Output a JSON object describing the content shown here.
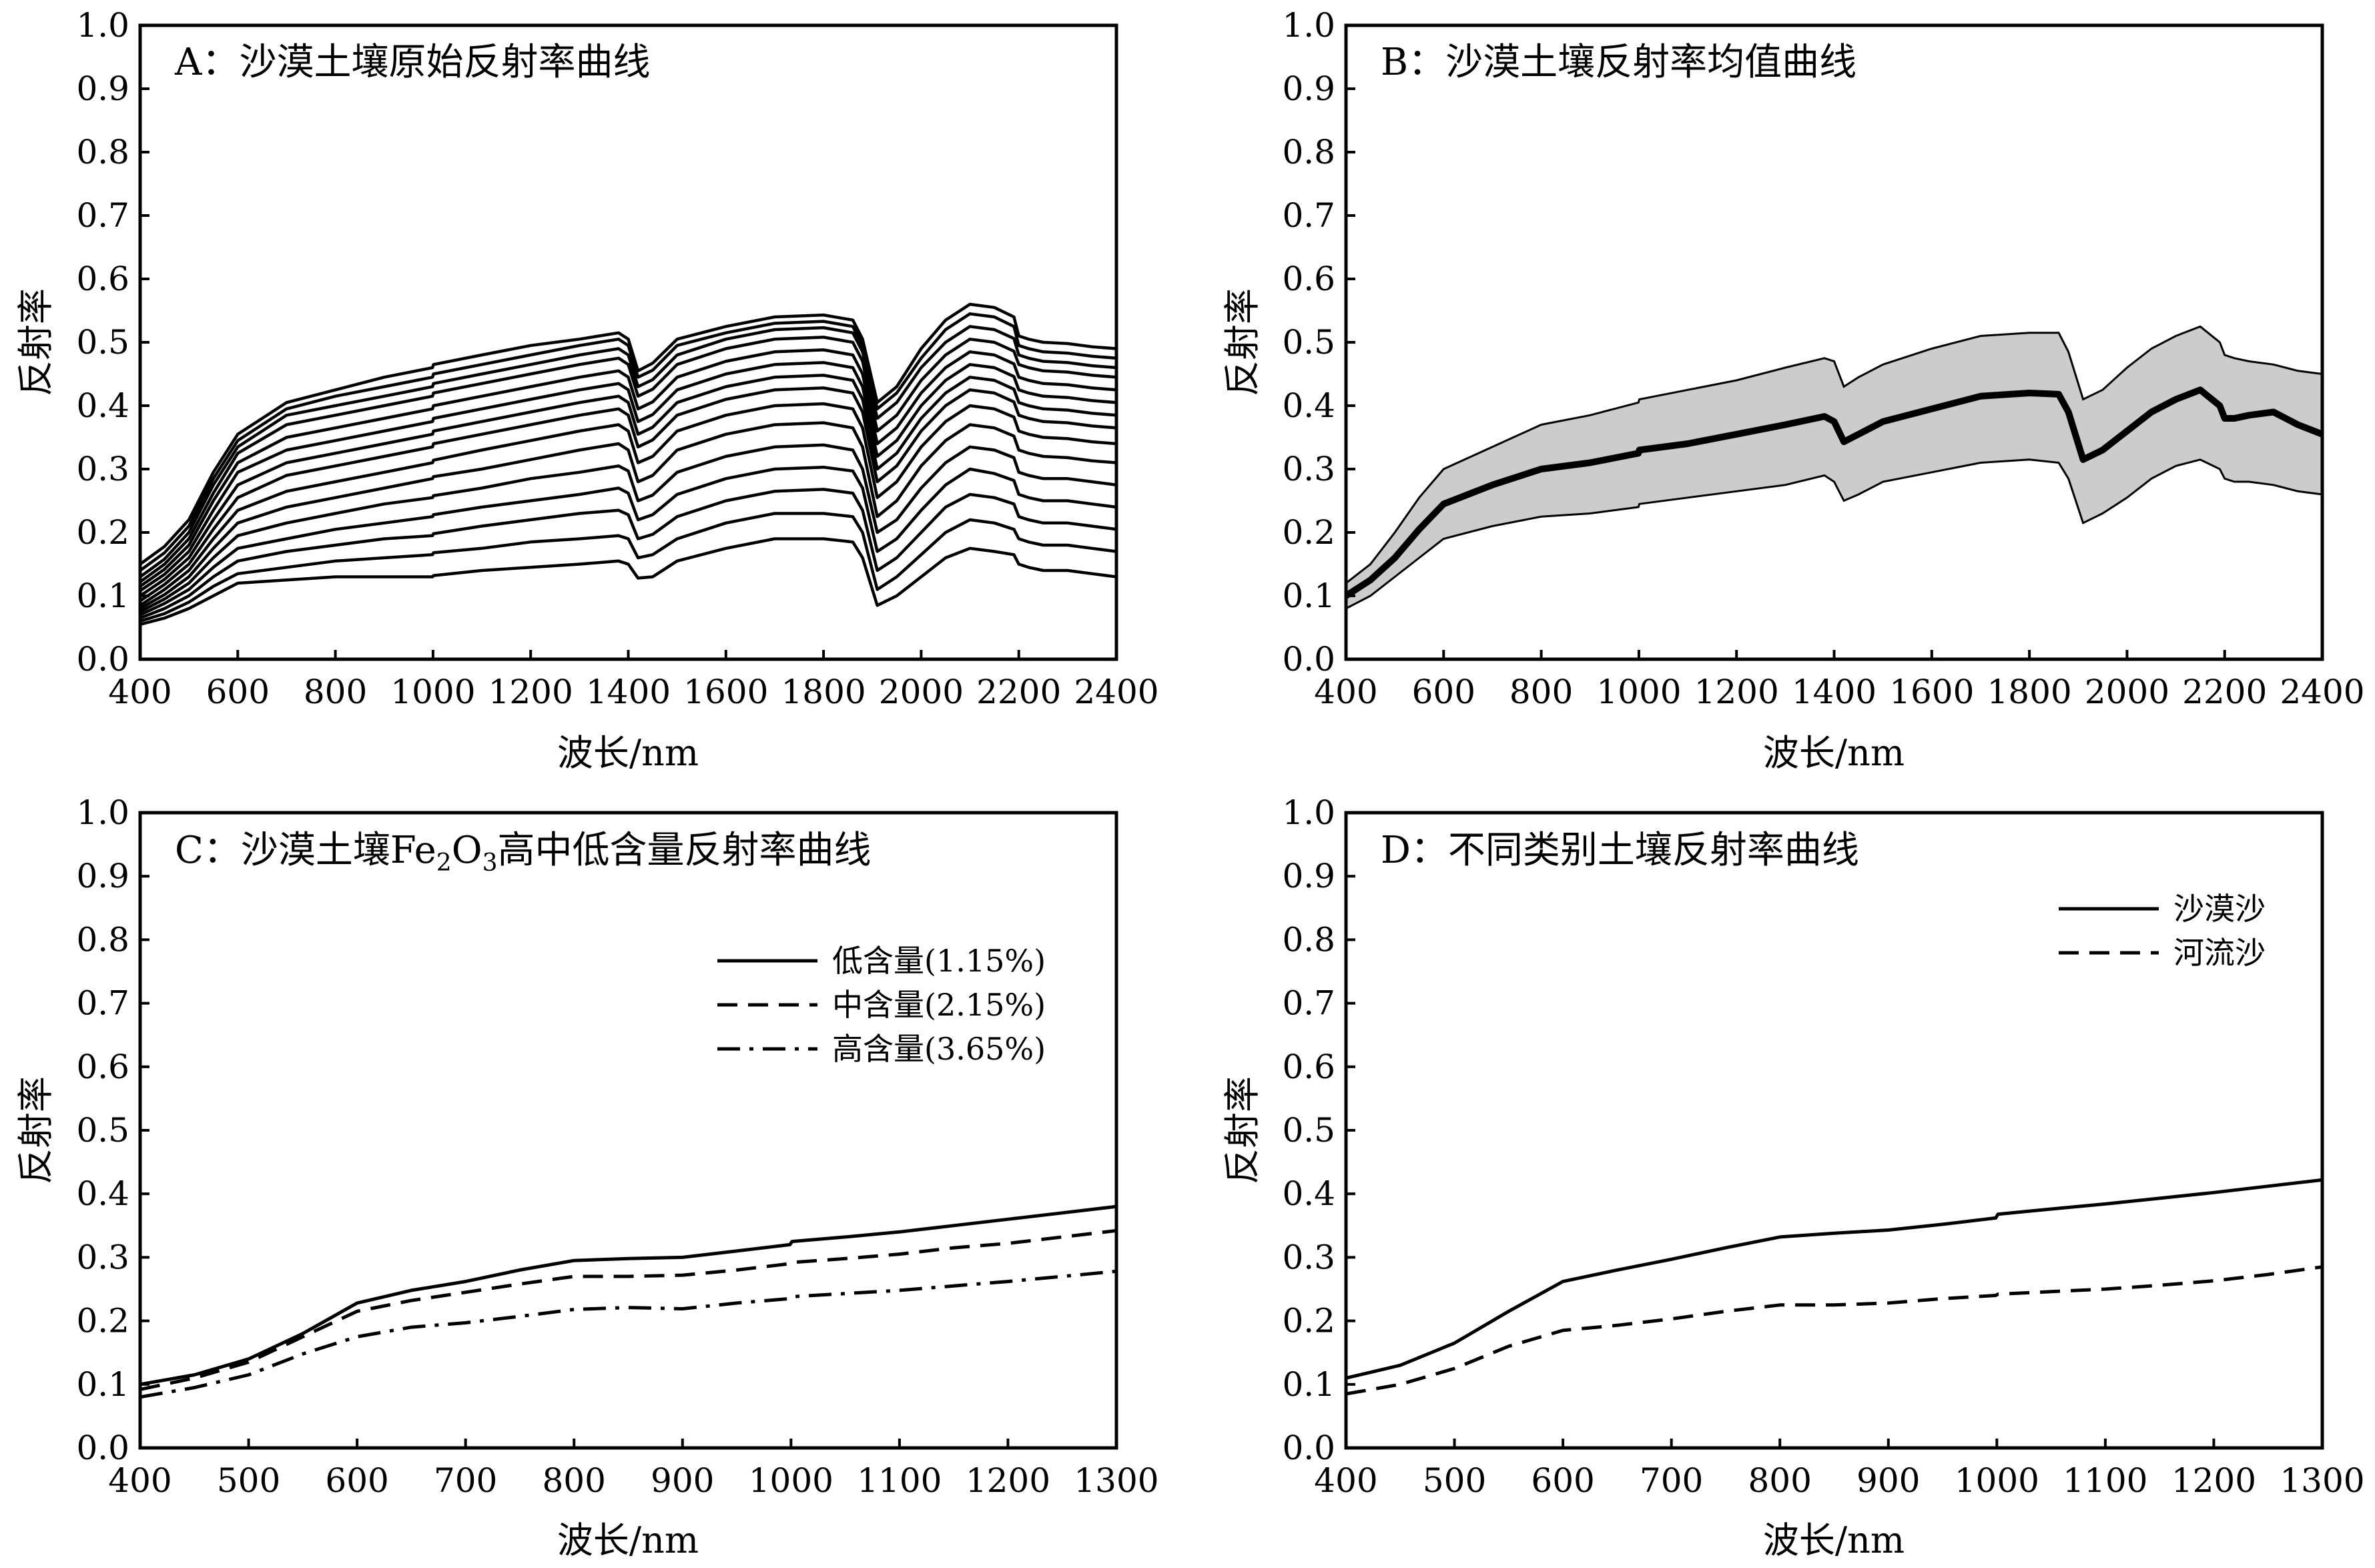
{
  "chart_data": [
    {
      "id": "A",
      "type": "line",
      "title": "A：沙漠土壤原始反射率曲线",
      "xlabel": "波长/nm",
      "ylabel": "反射率",
      "xlim": [
        400,
        2400
      ],
      "ylim": [
        0,
        1
      ],
      "xticks": [
        400,
        600,
        800,
        1000,
        1200,
        1400,
        1600,
        1800,
        2000,
        2200,
        2400
      ],
      "yticks": [
        0.0,
        0.1,
        0.2,
        0.3,
        0.4,
        0.5,
        0.6,
        0.7,
        0.8,
        0.9,
        1.0
      ],
      "grid": false,
      "legend": "none",
      "x": [
        400,
        450,
        500,
        550,
        600,
        700,
        800,
        900,
        999,
        1001,
        1100,
        1200,
        1300,
        1380,
        1400,
        1420,
        1450,
        1500,
        1600,
        1700,
        1800,
        1860,
        1880,
        1910,
        1950,
        2000,
        2050,
        2100,
        2150,
        2190,
        2200,
        2220,
        2250,
        2300,
        2350,
        2400
      ],
      "series": [
        {
          "values": [
            0.055,
            0.065,
            0.08,
            0.1,
            0.12,
            0.125,
            0.13,
            0.13,
            0.13,
            0.132,
            0.14,
            0.145,
            0.15,
            0.155,
            0.15,
            0.128,
            0.13,
            0.155,
            0.175,
            0.19,
            0.19,
            0.185,
            0.16,
            0.085,
            0.1,
            0.13,
            0.16,
            0.175,
            0.17,
            0.165,
            0.15,
            0.145,
            0.14,
            0.14,
            0.135,
            0.13
          ]
        },
        {
          "values": [
            0.06,
            0.072,
            0.09,
            0.115,
            0.135,
            0.145,
            0.155,
            0.16,
            0.165,
            0.168,
            0.175,
            0.185,
            0.19,
            0.195,
            0.19,
            0.16,
            0.165,
            0.19,
            0.215,
            0.23,
            0.23,
            0.225,
            0.2,
            0.11,
            0.13,
            0.165,
            0.2,
            0.22,
            0.215,
            0.205,
            0.19,
            0.185,
            0.18,
            0.18,
            0.175,
            0.17
          ]
        },
        {
          "values": [
            0.065,
            0.08,
            0.1,
            0.13,
            0.155,
            0.17,
            0.18,
            0.19,
            0.195,
            0.198,
            0.21,
            0.22,
            0.23,
            0.235,
            0.228,
            0.19,
            0.197,
            0.225,
            0.25,
            0.265,
            0.268,
            0.262,
            0.235,
            0.14,
            0.16,
            0.2,
            0.24,
            0.26,
            0.255,
            0.245,
            0.225,
            0.22,
            0.215,
            0.215,
            0.21,
            0.205
          ]
        },
        {
          "values": [
            0.07,
            0.088,
            0.11,
            0.145,
            0.175,
            0.19,
            0.205,
            0.215,
            0.225,
            0.228,
            0.24,
            0.25,
            0.26,
            0.27,
            0.262,
            0.22,
            0.228,
            0.26,
            0.285,
            0.3,
            0.303,
            0.297,
            0.27,
            0.17,
            0.19,
            0.235,
            0.275,
            0.3,
            0.293,
            0.282,
            0.26,
            0.255,
            0.25,
            0.25,
            0.245,
            0.24
          ]
        },
        {
          "values": [
            0.075,
            0.095,
            0.12,
            0.16,
            0.195,
            0.215,
            0.23,
            0.245,
            0.255,
            0.258,
            0.27,
            0.285,
            0.295,
            0.305,
            0.297,
            0.25,
            0.259,
            0.295,
            0.32,
            0.335,
            0.338,
            0.33,
            0.3,
            0.2,
            0.22,
            0.27,
            0.31,
            0.335,
            0.33,
            0.318,
            0.295,
            0.29,
            0.285,
            0.285,
            0.28,
            0.275
          ]
        },
        {
          "values": [
            0.08,
            0.102,
            0.13,
            0.175,
            0.215,
            0.24,
            0.255,
            0.27,
            0.285,
            0.288,
            0.3,
            0.315,
            0.33,
            0.34,
            0.33,
            0.28,
            0.29,
            0.33,
            0.355,
            0.37,
            0.373,
            0.365,
            0.335,
            0.225,
            0.25,
            0.305,
            0.345,
            0.37,
            0.365,
            0.352,
            0.33,
            0.325,
            0.32,
            0.318,
            0.313,
            0.31
          ]
        },
        {
          "values": [
            0.085,
            0.11,
            0.14,
            0.19,
            0.235,
            0.265,
            0.28,
            0.295,
            0.31,
            0.314,
            0.33,
            0.345,
            0.36,
            0.37,
            0.36,
            0.31,
            0.32,
            0.36,
            0.385,
            0.4,
            0.403,
            0.395,
            0.365,
            0.255,
            0.28,
            0.335,
            0.375,
            0.4,
            0.395,
            0.382,
            0.36,
            0.355,
            0.35,
            0.348,
            0.343,
            0.34
          ]
        },
        {
          "values": [
            0.092,
            0.118,
            0.15,
            0.205,
            0.255,
            0.29,
            0.305,
            0.32,
            0.335,
            0.34,
            0.355,
            0.37,
            0.385,
            0.395,
            0.385,
            0.335,
            0.346,
            0.385,
            0.41,
            0.425,
            0.428,
            0.42,
            0.39,
            0.28,
            0.305,
            0.36,
            0.4,
            0.425,
            0.42,
            0.406,
            0.385,
            0.38,
            0.375,
            0.373,
            0.368,
            0.365
          ]
        },
        {
          "values": [
            0.1,
            0.126,
            0.16,
            0.22,
            0.275,
            0.31,
            0.325,
            0.34,
            0.355,
            0.36,
            0.375,
            0.39,
            0.405,
            0.415,
            0.405,
            0.355,
            0.366,
            0.405,
            0.43,
            0.445,
            0.448,
            0.44,
            0.41,
            0.3,
            0.325,
            0.38,
            0.42,
            0.445,
            0.44,
            0.426,
            0.405,
            0.4,
            0.395,
            0.393,
            0.388,
            0.385
          ]
        },
        {
          "values": [
            0.108,
            0.134,
            0.17,
            0.235,
            0.295,
            0.33,
            0.345,
            0.36,
            0.375,
            0.38,
            0.395,
            0.41,
            0.425,
            0.435,
            0.425,
            0.375,
            0.386,
            0.425,
            0.45,
            0.465,
            0.468,
            0.46,
            0.43,
            0.32,
            0.345,
            0.4,
            0.44,
            0.465,
            0.46,
            0.446,
            0.425,
            0.42,
            0.415,
            0.413,
            0.408,
            0.405
          ]
        },
        {
          "values": [
            0.115,
            0.142,
            0.18,
            0.25,
            0.31,
            0.35,
            0.365,
            0.38,
            0.395,
            0.4,
            0.415,
            0.43,
            0.445,
            0.455,
            0.445,
            0.395,
            0.406,
            0.445,
            0.47,
            0.485,
            0.488,
            0.48,
            0.45,
            0.34,
            0.365,
            0.42,
            0.46,
            0.485,
            0.48,
            0.466,
            0.445,
            0.44,
            0.435,
            0.433,
            0.428,
            0.425
          ]
        },
        {
          "values": [
            0.122,
            0.15,
            0.19,
            0.262,
            0.325,
            0.37,
            0.385,
            0.4,
            0.415,
            0.42,
            0.435,
            0.45,
            0.465,
            0.475,
            0.465,
            0.415,
            0.426,
            0.465,
            0.49,
            0.505,
            0.508,
            0.5,
            0.47,
            0.36,
            0.385,
            0.44,
            0.48,
            0.505,
            0.5,
            0.486,
            0.465,
            0.46,
            0.455,
            0.453,
            0.448,
            0.445
          ]
        },
        {
          "values": [
            0.13,
            0.158,
            0.2,
            0.275,
            0.335,
            0.385,
            0.4,
            0.415,
            0.43,
            0.435,
            0.45,
            0.465,
            0.48,
            0.49,
            0.48,
            0.43,
            0.441,
            0.48,
            0.505,
            0.52,
            0.523,
            0.515,
            0.485,
            0.38,
            0.405,
            0.46,
            0.5,
            0.525,
            0.52,
            0.506,
            0.48,
            0.475,
            0.47,
            0.468,
            0.463,
            0.46
          ]
        },
        {
          "values": [
            0.14,
            0.168,
            0.21,
            0.285,
            0.345,
            0.395,
            0.415,
            0.43,
            0.445,
            0.45,
            0.465,
            0.48,
            0.495,
            0.505,
            0.495,
            0.445,
            0.456,
            0.495,
            0.515,
            0.53,
            0.533,
            0.525,
            0.495,
            0.395,
            0.42,
            0.475,
            0.52,
            0.545,
            0.54,
            0.525,
            0.495,
            0.49,
            0.485,
            0.483,
            0.478,
            0.475
          ]
        },
        {
          "values": [
            0.15,
            0.178,
            0.22,
            0.295,
            0.355,
            0.405,
            0.425,
            0.445,
            0.46,
            0.465,
            0.48,
            0.495,
            0.505,
            0.515,
            0.505,
            0.455,
            0.467,
            0.505,
            0.525,
            0.54,
            0.543,
            0.535,
            0.505,
            0.405,
            0.43,
            0.49,
            0.535,
            0.56,
            0.555,
            0.54,
            0.51,
            0.505,
            0.5,
            0.498,
            0.493,
            0.49
          ]
        }
      ]
    },
    {
      "id": "B",
      "type": "area",
      "title": "B：沙漠土壤反射率均值曲线",
      "xlabel": "波长/nm",
      "ylabel": "反射率",
      "xlim": [
        400,
        2400
      ],
      "ylim": [
        0,
        1
      ],
      "xticks": [
        400,
        600,
        800,
        1000,
        1200,
        1400,
        1600,
        1800,
        2000,
        2200,
        2400
      ],
      "yticks": [
        0.0,
        0.1,
        0.2,
        0.3,
        0.4,
        0.5,
        0.6,
        0.7,
        0.8,
        0.9,
        1.0
      ],
      "grid": false,
      "legend": "none",
      "band_color": "#cccccc",
      "x": [
        400,
        450,
        500,
        550,
        600,
        700,
        800,
        900,
        999,
        1001,
        1100,
        1200,
        1300,
        1380,
        1400,
        1420,
        1450,
        1500,
        1600,
        1700,
        1800,
        1860,
        1880,
        1910,
        1950,
        2000,
        2050,
        2100,
        2150,
        2190,
        2200,
        2220,
        2250,
        2300,
        2350,
        2400
      ],
      "mean": [
        0.1,
        0.125,
        0.16,
        0.205,
        0.245,
        0.275,
        0.3,
        0.31,
        0.325,
        0.33,
        0.34,
        0.355,
        0.37,
        0.383,
        0.375,
        0.343,
        0.355,
        0.375,
        0.395,
        0.415,
        0.42,
        0.418,
        0.39,
        0.315,
        0.33,
        0.36,
        0.39,
        0.41,
        0.425,
        0.4,
        0.38,
        0.38,
        0.385,
        0.39,
        0.37,
        0.355
      ],
      "upper": [
        0.12,
        0.15,
        0.2,
        0.255,
        0.3,
        0.335,
        0.37,
        0.385,
        0.405,
        0.41,
        0.425,
        0.44,
        0.46,
        0.475,
        0.47,
        0.43,
        0.445,
        0.465,
        0.49,
        0.51,
        0.515,
        0.515,
        0.485,
        0.41,
        0.425,
        0.46,
        0.49,
        0.51,
        0.525,
        0.5,
        0.48,
        0.475,
        0.47,
        0.465,
        0.455,
        0.45
      ],
      "lower": [
        0.08,
        0.1,
        0.13,
        0.16,
        0.19,
        0.21,
        0.225,
        0.23,
        0.24,
        0.245,
        0.255,
        0.265,
        0.275,
        0.29,
        0.28,
        0.25,
        0.26,
        0.28,
        0.295,
        0.31,
        0.315,
        0.31,
        0.285,
        0.215,
        0.23,
        0.255,
        0.285,
        0.305,
        0.315,
        0.3,
        0.285,
        0.28,
        0.28,
        0.275,
        0.265,
        0.26
      ]
    },
    {
      "id": "C",
      "type": "line",
      "title": "C：沙漠土壤Fe2O3高中低含量反射率曲线",
      "title_parts": {
        "pre": "C：沙漠土壤Fe",
        "s1": "2",
        "mid": "O",
        "s2": "3",
        "post": "高中低含量反射率曲线"
      },
      "xlabel": "波长/nm",
      "ylabel": "反射率",
      "xlim": [
        400,
        1300
      ],
      "ylim": [
        0,
        1
      ],
      "xticks": [
        400,
        500,
        600,
        700,
        800,
        900,
        1000,
        1100,
        1200,
        1300
      ],
      "yticks": [
        0.0,
        0.1,
        0.2,
        0.3,
        0.4,
        0.5,
        0.6,
        0.7,
        0.8,
        0.9,
        1.0
      ],
      "grid": false,
      "legend": "top-right",
      "x": [
        400,
        450,
        500,
        550,
        600,
        650,
        700,
        750,
        800,
        850,
        900,
        950,
        999,
        1001,
        1050,
        1100,
        1150,
        1200,
        1250,
        1300
      ],
      "series": [
        {
          "name": "低含量(1.15%)",
          "style": "solid",
          "values": [
            0.1,
            0.115,
            0.14,
            0.18,
            0.228,
            0.248,
            0.262,
            0.28,
            0.295,
            0.298,
            0.3,
            0.31,
            0.32,
            0.325,
            0.332,
            0.34,
            0.35,
            0.36,
            0.37,
            0.38
          ]
        },
        {
          "name": "中含量(2.15%)",
          "style": "dashed",
          "values": [
            0.092,
            0.11,
            0.135,
            0.175,
            0.215,
            0.232,
            0.245,
            0.258,
            0.27,
            0.27,
            0.272,
            0.28,
            0.29,
            0.292,
            0.298,
            0.305,
            0.315,
            0.322,
            0.332,
            0.342
          ]
        },
        {
          "name": "高含量(3.65%)",
          "style": "dashdot",
          "values": [
            0.08,
            0.095,
            0.115,
            0.148,
            0.175,
            0.19,
            0.197,
            0.207,
            0.218,
            0.221,
            0.219,
            0.228,
            0.235,
            0.238,
            0.243,
            0.248,
            0.255,
            0.262,
            0.27,
            0.278
          ]
        }
      ]
    },
    {
      "id": "D",
      "type": "line",
      "title": "D：不同类别土壤反射率曲线",
      "xlabel": "波长/nm",
      "ylabel": "反射率",
      "xlim": [
        400,
        1300
      ],
      "ylim": [
        0,
        1
      ],
      "xticks": [
        400,
        500,
        600,
        700,
        800,
        900,
        1000,
        1100,
        1200,
        1300
      ],
      "yticks": [
        0.0,
        0.1,
        0.2,
        0.3,
        0.4,
        0.5,
        0.6,
        0.7,
        0.8,
        0.9,
        1.0
      ],
      "grid": false,
      "legend": "top-right",
      "x": [
        400,
        450,
        500,
        550,
        600,
        650,
        700,
        750,
        800,
        850,
        900,
        950,
        999,
        1001,
        1050,
        1100,
        1150,
        1200,
        1250,
        1300
      ],
      "series": [
        {
          "name": "沙漠沙",
          "style": "solid",
          "values": [
            0.11,
            0.13,
            0.165,
            0.215,
            0.262,
            0.28,
            0.297,
            0.315,
            0.332,
            0.338,
            0.343,
            0.352,
            0.362,
            0.368,
            0.376,
            0.384,
            0.393,
            0.402,
            0.412,
            0.422
          ]
        },
        {
          "name": "河流沙",
          "style": "dashed",
          "values": [
            0.085,
            0.1,
            0.125,
            0.16,
            0.185,
            0.193,
            0.203,
            0.215,
            0.225,
            0.225,
            0.228,
            0.235,
            0.24,
            0.242,
            0.246,
            0.25,
            0.256,
            0.263,
            0.273,
            0.285
          ]
        }
      ]
    }
  ]
}
